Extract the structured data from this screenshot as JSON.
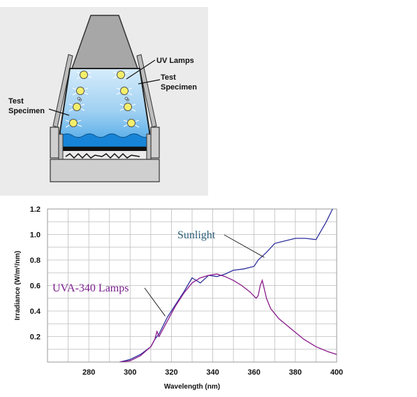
{
  "diagram": {
    "labels": {
      "uv_lamps": "UV Lamps",
      "test_specimen_right_1": "Test",
      "test_specimen_right_2": "Specimen",
      "test_specimen_left_1": "Test",
      "test_specimen_left_2": "Specimen"
    }
  },
  "chart_data": {
    "type": "line",
    "xlabel": "Wavelength (nm)",
    "ylabel": "Irradiance (W/m²/nm)",
    "xlim": [
      260,
      400
    ],
    "ylim": [
      0,
      1.2
    ],
    "x_ticks": [
      280,
      300,
      320,
      340,
      360,
      380,
      400
    ],
    "y_ticks": [
      0.2,
      0.4,
      0.6,
      0.8,
      1.0,
      1.2
    ],
    "x_tick_labels": [
      "280",
      "300",
      "320",
      "340",
      "360",
      "380",
      "400"
    ],
    "y_tick_labels": [
      "0.2",
      "0.4",
      "0.6",
      "0.8",
      "1.0",
      "1.2"
    ],
    "grid": true,
    "series": [
      {
        "name": "Sunlight",
        "color": "#2f2f9e",
        "x": [
          295,
          300,
          305,
          310,
          312,
          314,
          318,
          322,
          326,
          330,
          334,
          338,
          342,
          346,
          350,
          355,
          360,
          362,
          366,
          370,
          375,
          380,
          385,
          390,
          395,
          398,
          400
        ],
        "y": [
          0.0,
          0.02,
          0.06,
          0.12,
          0.18,
          0.22,
          0.35,
          0.45,
          0.55,
          0.66,
          0.62,
          0.68,
          0.67,
          0.69,
          0.72,
          0.73,
          0.75,
          0.8,
          0.86,
          0.93,
          0.95,
          0.97,
          0.97,
          0.96,
          1.1,
          1.2,
          1.25
        ]
      },
      {
        "name": "UVA-340 Lamps",
        "color": "#8b1a8b",
        "x": [
          295,
          300,
          305,
          310,
          312,
          313,
          314,
          318,
          322,
          326,
          330,
          334,
          338,
          342,
          346,
          350,
          354,
          358,
          361,
          362,
          363,
          364,
          366,
          368,
          372,
          378,
          384,
          390,
          396,
          400
        ],
        "y": [
          0.0,
          0.01,
          0.05,
          0.12,
          0.18,
          0.24,
          0.2,
          0.32,
          0.44,
          0.54,
          0.62,
          0.66,
          0.68,
          0.69,
          0.67,
          0.64,
          0.6,
          0.55,
          0.5,
          0.52,
          0.6,
          0.64,
          0.5,
          0.42,
          0.34,
          0.26,
          0.18,
          0.12,
          0.08,
          0.06
        ]
      }
    ],
    "annotations": {
      "sunlight_label": "Sunlight",
      "sunlight_color": "#2f5f7a",
      "uva_label": "UVA-340 Lamps",
      "uva_color": "#7b1f8f"
    }
  }
}
